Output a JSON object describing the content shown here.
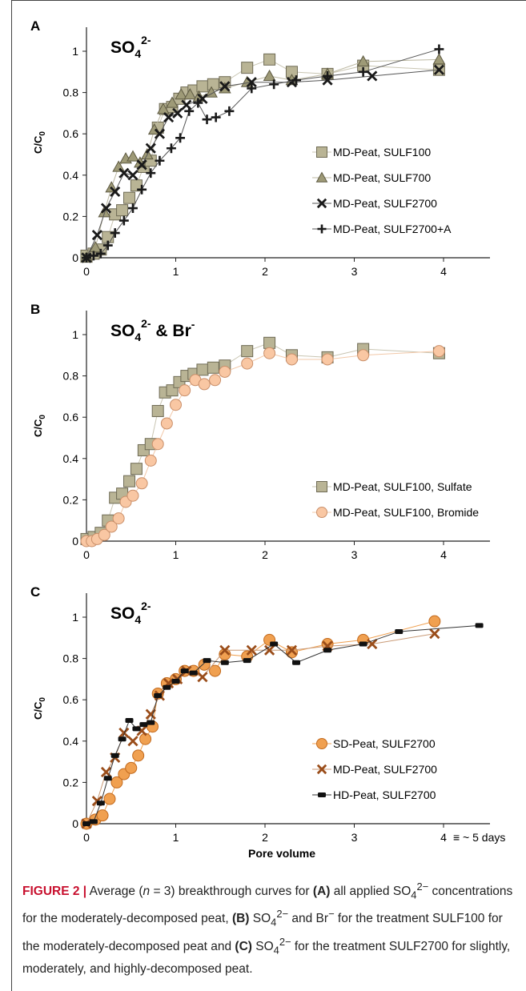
{
  "colors": {
    "gray_square": "#b9b495",
    "gray_square_stroke": "#6f6b55",
    "triangle": "#9e9a77",
    "x_marker": "#1a1a1a",
    "plus_marker": "#1a1a1a",
    "bromide": "#f9c7a3",
    "bromide_stroke": "#c98f6a",
    "sd_peat": "#f0a050",
    "sd_peat_stroke": "#c26a1e",
    "md_x_brown": "#9a4d1a",
    "hd_line": "#222222",
    "caption_lead": "#c8102e"
  },
  "caption": {
    "label": "FIGURE 2 |",
    "pre1": " Average (",
    "n_italic": "n",
    "eq": " = 3) breakthrough curves for ",
    "A": "(A)",
    "part_a": " all applied SO",
    "sub4": "4",
    "sup2m": "2−",
    "part_a2": " concentrations for the moderately-decomposed peat, ",
    "B": "(B)",
    "part_b": " SO",
    "part_b2": " and Br",
    "supm": "−",
    "part_b3": " for the treatment SULF100 for the moderately-decomposed peat and ",
    "C": "(C)",
    "part_c": " SO",
    "part_c2": " for the treatment SULF2700 for slightly, moderately, and highly-decomposed peat."
  },
  "chart_data": [
    {
      "panel": "A",
      "type": "scatter",
      "title_base": "SO",
      "title_sub": "4",
      "title_sup": "2-",
      "title_extra": "",
      "ylabel_base": "C/C",
      "ylabel_sub": "0",
      "xlabel": "",
      "xlim": [
        0,
        4.5
      ],
      "ylim": [
        0,
        1.1
      ],
      "xticks": [
        0,
        1,
        2,
        3,
        4
      ],
      "yticks": [
        0,
        0.2,
        0.4,
        0.6,
        0.8,
        1
      ],
      "ytick_labels": [
        "0",
        "0.2",
        "0.4",
        "0.6",
        "0.8",
        "1"
      ],
      "legend_position": "bottom-right",
      "series": [
        {
          "name": "MD-Peat, SULF100",
          "marker": "square",
          "color": "#b9b495",
          "stroke": "#6f6b55",
          "line": "#c9c5b2",
          "x": [
            0,
            0.08,
            0.16,
            0.24,
            0.32,
            0.4,
            0.48,
            0.56,
            0.64,
            0.72,
            0.8,
            0.88,
            0.96,
            1.04,
            1.12,
            1.2,
            1.3,
            1.42,
            1.55,
            1.8,
            2.05,
            2.3,
            2.7,
            3.1,
            3.95
          ],
          "y": [
            0.01,
            0.02,
            0.04,
            0.1,
            0.21,
            0.23,
            0.29,
            0.35,
            0.44,
            0.47,
            0.63,
            0.72,
            0.73,
            0.77,
            0.8,
            0.81,
            0.83,
            0.84,
            0.85,
            0.92,
            0.96,
            0.9,
            0.89,
            0.93,
            0.91
          ]
        },
        {
          "name": "MD-Peat, SULF700",
          "marker": "triangle",
          "color": "#9e9a77",
          "stroke": "#5e5a42",
          "line": "#bdb9a3",
          "x": [
            0,
            0.1,
            0.2,
            0.28,
            0.36,
            0.44,
            0.52,
            0.6,
            0.68,
            0.76,
            0.86,
            0.96,
            1.06,
            1.16,
            1.26,
            1.4,
            1.55,
            1.8,
            2.05,
            2.3,
            2.7,
            3.1,
            3.95
          ],
          "y": [
            0.0,
            0.05,
            0.22,
            0.34,
            0.44,
            0.48,
            0.49,
            0.46,
            0.5,
            0.62,
            0.72,
            0.75,
            0.79,
            0.79,
            0.78,
            0.8,
            0.82,
            0.85,
            0.88,
            0.86,
            0.89,
            0.95,
            0.96
          ]
        },
        {
          "name": "MD-Peat, SULF2700",
          "marker": "x",
          "color": "#1a1a1a",
          "stroke": "#1a1a1a",
          "line": "#555555",
          "x": [
            0,
            0.12,
            0.22,
            0.32,
            0.42,
            0.52,
            0.62,
            0.72,
            0.82,
            0.92,
            1.02,
            1.12,
            1.3,
            1.55,
            1.85,
            2.3,
            2.7,
            3.2,
            3.95
          ],
          "y": [
            0.0,
            0.11,
            0.24,
            0.32,
            0.41,
            0.4,
            0.45,
            0.53,
            0.6,
            0.68,
            0.7,
            0.74,
            0.77,
            0.83,
            0.85,
            0.85,
            0.86,
            0.88,
            0.91
          ]
        },
        {
          "name": "MD-Peat, SULF2700+A",
          "marker": "plus",
          "color": "#1a1a1a",
          "stroke": "#1a1a1a",
          "line": "#555555",
          "x": [
            0,
            0.08,
            0.16,
            0.24,
            0.32,
            0.42,
            0.52,
            0.62,
            0.72,
            0.82,
            0.95,
            1.05,
            1.15,
            1.25,
            1.35,
            1.45,
            1.6,
            1.85,
            2.1,
            2.35,
            2.7,
            3.1,
            3.95
          ],
          "y": [
            0.0,
            0.01,
            0.02,
            0.06,
            0.12,
            0.18,
            0.24,
            0.33,
            0.41,
            0.47,
            0.53,
            0.58,
            0.71,
            0.75,
            0.67,
            0.68,
            0.71,
            0.82,
            0.84,
            0.86,
            0.88,
            0.9,
            1.01
          ]
        }
      ]
    },
    {
      "panel": "B",
      "type": "scatter",
      "title_base": "SO",
      "title_sub": "4",
      "title_sup": "2-",
      "title_extra": " & Br",
      "title_extra_sup": "-",
      "ylabel_base": "C/C",
      "ylabel_sub": "0",
      "xlabel": "",
      "xlim": [
        0,
        4.5
      ],
      "ylim": [
        0,
        1.1
      ],
      "xticks": [
        0,
        1,
        2,
        3,
        4
      ],
      "yticks": [
        0,
        0.2,
        0.4,
        0.6,
        0.8,
        1
      ],
      "ytick_labels": [
        "0",
        "0.2",
        "0.4",
        "0.6",
        "0.8",
        "1"
      ],
      "legend_position": "bottom-right",
      "series": [
        {
          "name": "MD-Peat, SULF100, Sulfate",
          "marker": "square",
          "color": "#b9b495",
          "stroke": "#6f6b55",
          "line": "#c9c5b2",
          "x": [
            0,
            0.08,
            0.16,
            0.24,
            0.32,
            0.4,
            0.48,
            0.56,
            0.64,
            0.72,
            0.8,
            0.88,
            0.96,
            1.04,
            1.12,
            1.2,
            1.3,
            1.42,
            1.55,
            1.8,
            2.05,
            2.3,
            2.7,
            3.1,
            3.95
          ],
          "y": [
            0.01,
            0.02,
            0.04,
            0.1,
            0.21,
            0.23,
            0.29,
            0.35,
            0.44,
            0.47,
            0.63,
            0.72,
            0.73,
            0.77,
            0.8,
            0.81,
            0.83,
            0.84,
            0.85,
            0.92,
            0.96,
            0.9,
            0.89,
            0.93,
            0.91
          ]
        },
        {
          "name": "MD-Peat, SULF100, Bromide",
          "marker": "circle",
          "color": "#f9c7a3",
          "stroke": "#c98f6a",
          "line": "#f2c8a8",
          "x": [
            0,
            0.06,
            0.12,
            0.2,
            0.28,
            0.36,
            0.44,
            0.52,
            0.62,
            0.72,
            0.8,
            0.9,
            1.0,
            1.1,
            1.22,
            1.32,
            1.44,
            1.55,
            1.8,
            2.05,
            2.3,
            2.7,
            3.1,
            3.95
          ],
          "y": [
            0.0,
            0.0,
            0.01,
            0.03,
            0.07,
            0.11,
            0.19,
            0.22,
            0.28,
            0.39,
            0.47,
            0.57,
            0.66,
            0.73,
            0.78,
            0.76,
            0.78,
            0.82,
            0.86,
            0.91,
            0.88,
            0.88,
            0.9,
            0.92
          ]
        }
      ]
    },
    {
      "panel": "C",
      "type": "scatter",
      "title_base": "SO",
      "title_sub": "4",
      "title_sup": "2-",
      "title_extra": "",
      "ylabel_base": "C/C",
      "ylabel_sub": "0",
      "xlabel": "Pore volume",
      "xlim": [
        0,
        4.5
      ],
      "ylim": [
        0,
        1.1
      ],
      "xticks": [
        0,
        1,
        2,
        3,
        4
      ],
      "yticks": [
        0,
        0.2,
        0.4,
        0.6,
        0.8,
        1
      ],
      "ytick_labels": [
        "0",
        "0.2",
        "0.4",
        "0.6",
        "0.8",
        "1"
      ],
      "x_annotation": "≡ ~ 5 days",
      "legend_position": "bottom-right",
      "series": [
        {
          "name": "SD-Peat, SULF2700",
          "marker": "circle",
          "color": "#f0a050",
          "stroke": "#c26a1e",
          "line": "#f0a050",
          "x": [
            0,
            0.1,
            0.18,
            0.26,
            0.34,
            0.42,
            0.5,
            0.58,
            0.66,
            0.74,
            0.8,
            0.9,
            1.0,
            1.1,
            1.2,
            1.32,
            1.44,
            1.55,
            1.8,
            2.05,
            2.3,
            2.7,
            3.1,
            3.9
          ],
          "y": [
            0.0,
            0.02,
            0.04,
            0.12,
            0.2,
            0.24,
            0.27,
            0.33,
            0.41,
            0.47,
            0.63,
            0.68,
            0.7,
            0.74,
            0.74,
            0.77,
            0.74,
            0.82,
            0.81,
            0.89,
            0.83,
            0.87,
            0.89,
            0.98
          ]
        },
        {
          "name": "MD-Peat, SULF2700",
          "marker": "x",
          "color": "#9a4d1a",
          "stroke": "#9a4d1a",
          "line": "#c99a76",
          "x": [
            0,
            0.12,
            0.22,
            0.32,
            0.42,
            0.52,
            0.62,
            0.72,
            0.82,
            0.92,
            1.02,
            1.12,
            1.3,
            1.55,
            1.85,
            2.05,
            2.3,
            2.7,
            3.2,
            3.9
          ],
          "y": [
            0.0,
            0.11,
            0.25,
            0.32,
            0.44,
            0.4,
            0.45,
            0.53,
            0.62,
            0.68,
            0.7,
            0.74,
            0.71,
            0.84,
            0.84,
            0.84,
            0.84,
            0.86,
            0.87,
            0.92
          ]
        },
        {
          "name": "HD-Peat, SULF2700",
          "marker": "dash",
          "color": "#111111",
          "stroke": "#111111",
          "line": "#333333",
          "x": [
            0,
            0.08,
            0.16,
            0.24,
            0.32,
            0.4,
            0.48,
            0.56,
            0.64,
            0.72,
            0.8,
            0.9,
            1.0,
            1.1,
            1.2,
            1.35,
            1.55,
            1.8,
            2.1,
            2.35,
            2.7,
            3.1,
            3.5,
            4.4
          ],
          "y": [
            0.0,
            0.01,
            0.1,
            0.22,
            0.33,
            0.41,
            0.5,
            0.46,
            0.48,
            0.49,
            0.62,
            0.66,
            0.69,
            0.74,
            0.73,
            0.79,
            0.78,
            0.79,
            0.87,
            0.78,
            0.84,
            0.87,
            0.93,
            0.96
          ]
        }
      ]
    }
  ]
}
